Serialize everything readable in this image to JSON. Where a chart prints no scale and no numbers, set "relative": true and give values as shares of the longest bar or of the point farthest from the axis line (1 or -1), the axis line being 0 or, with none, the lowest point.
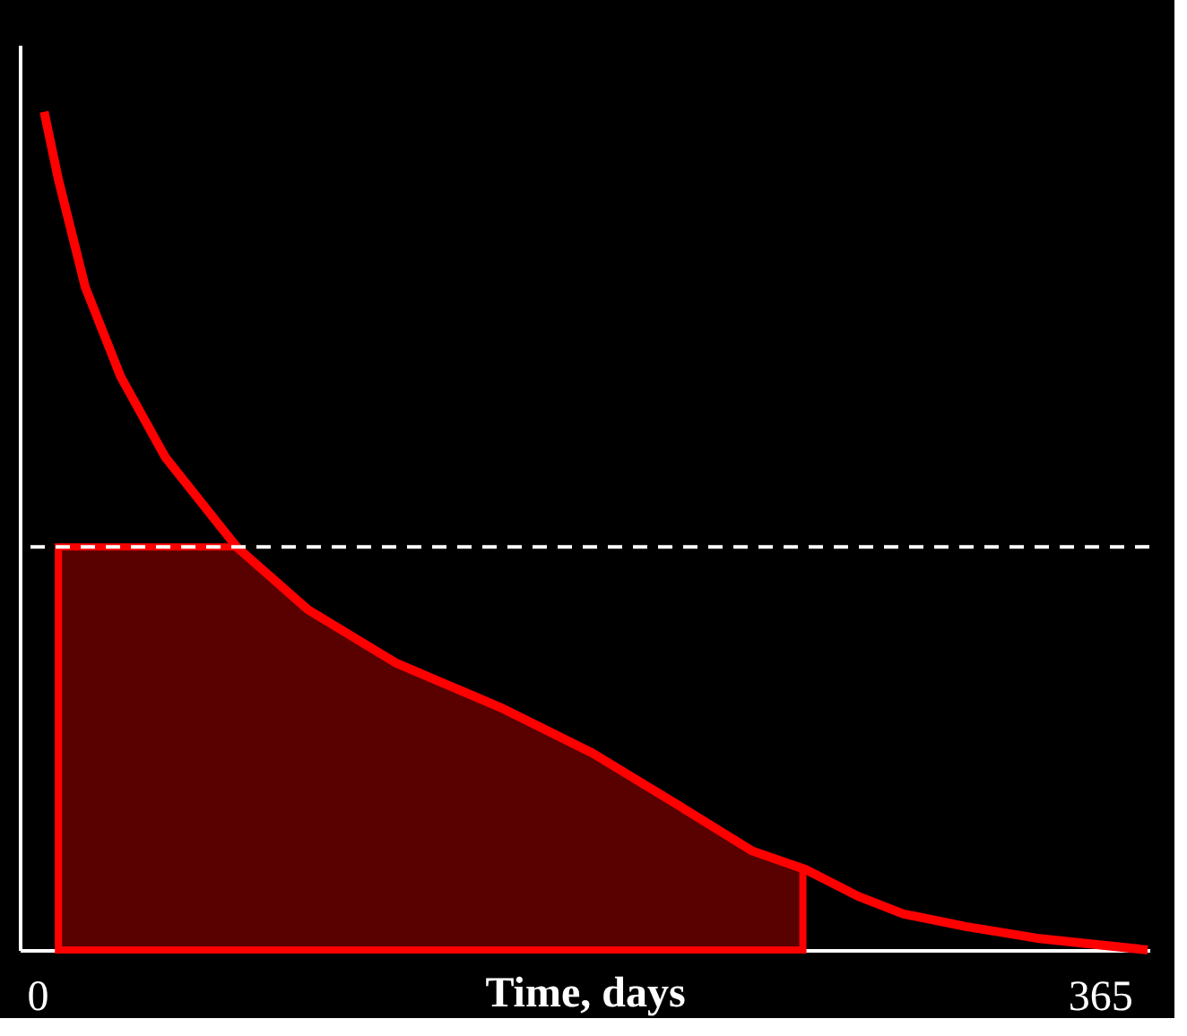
{
  "chart_data": {
    "type": "line",
    "relative": true,
    "xlabel": "Time, days",
    "xlim": [
      -6,
      382
    ],
    "xticks": [
      0,
      365
    ],
    "marker": "none",
    "line_style": "solid",
    "series": [
      {
        "type": "area",
        "color": "#ff0000",
        "x": [
          7.3,
          68.5,
          93,
          123.5,
          160,
          190.7,
          221,
          245.7,
          263
        ],
        "values": [
          0.481,
          0.481,
          0.406,
          0.342,
          0.288,
          0.235,
          0.171,
          0.118,
          0.096
        ]
      },
      {
        "color": "#ff0000",
        "x": [
          2.4,
          7.3,
          16.5,
          28.7,
          44,
          68.5,
          93,
          123.5,
          160,
          190.7,
          221,
          245.7,
          264,
          282,
          297.6,
          319,
          343.5,
          381.4
        ],
        "values": [
          1.0,
          0.919,
          0.791,
          0.684,
          0.588,
          0.481,
          0.406,
          0.342,
          0.288,
          0.235,
          0.171,
          0.118,
          0.096,
          0.064,
          0.043,
          0.028,
          0.014,
          0.0
        ]
      }
    ],
    "ref_lines": [
      {
        "axis": "y",
        "value": 0.481,
        "color": "#ffffff",
        "line_style": "dashed"
      }
    ]
  }
}
